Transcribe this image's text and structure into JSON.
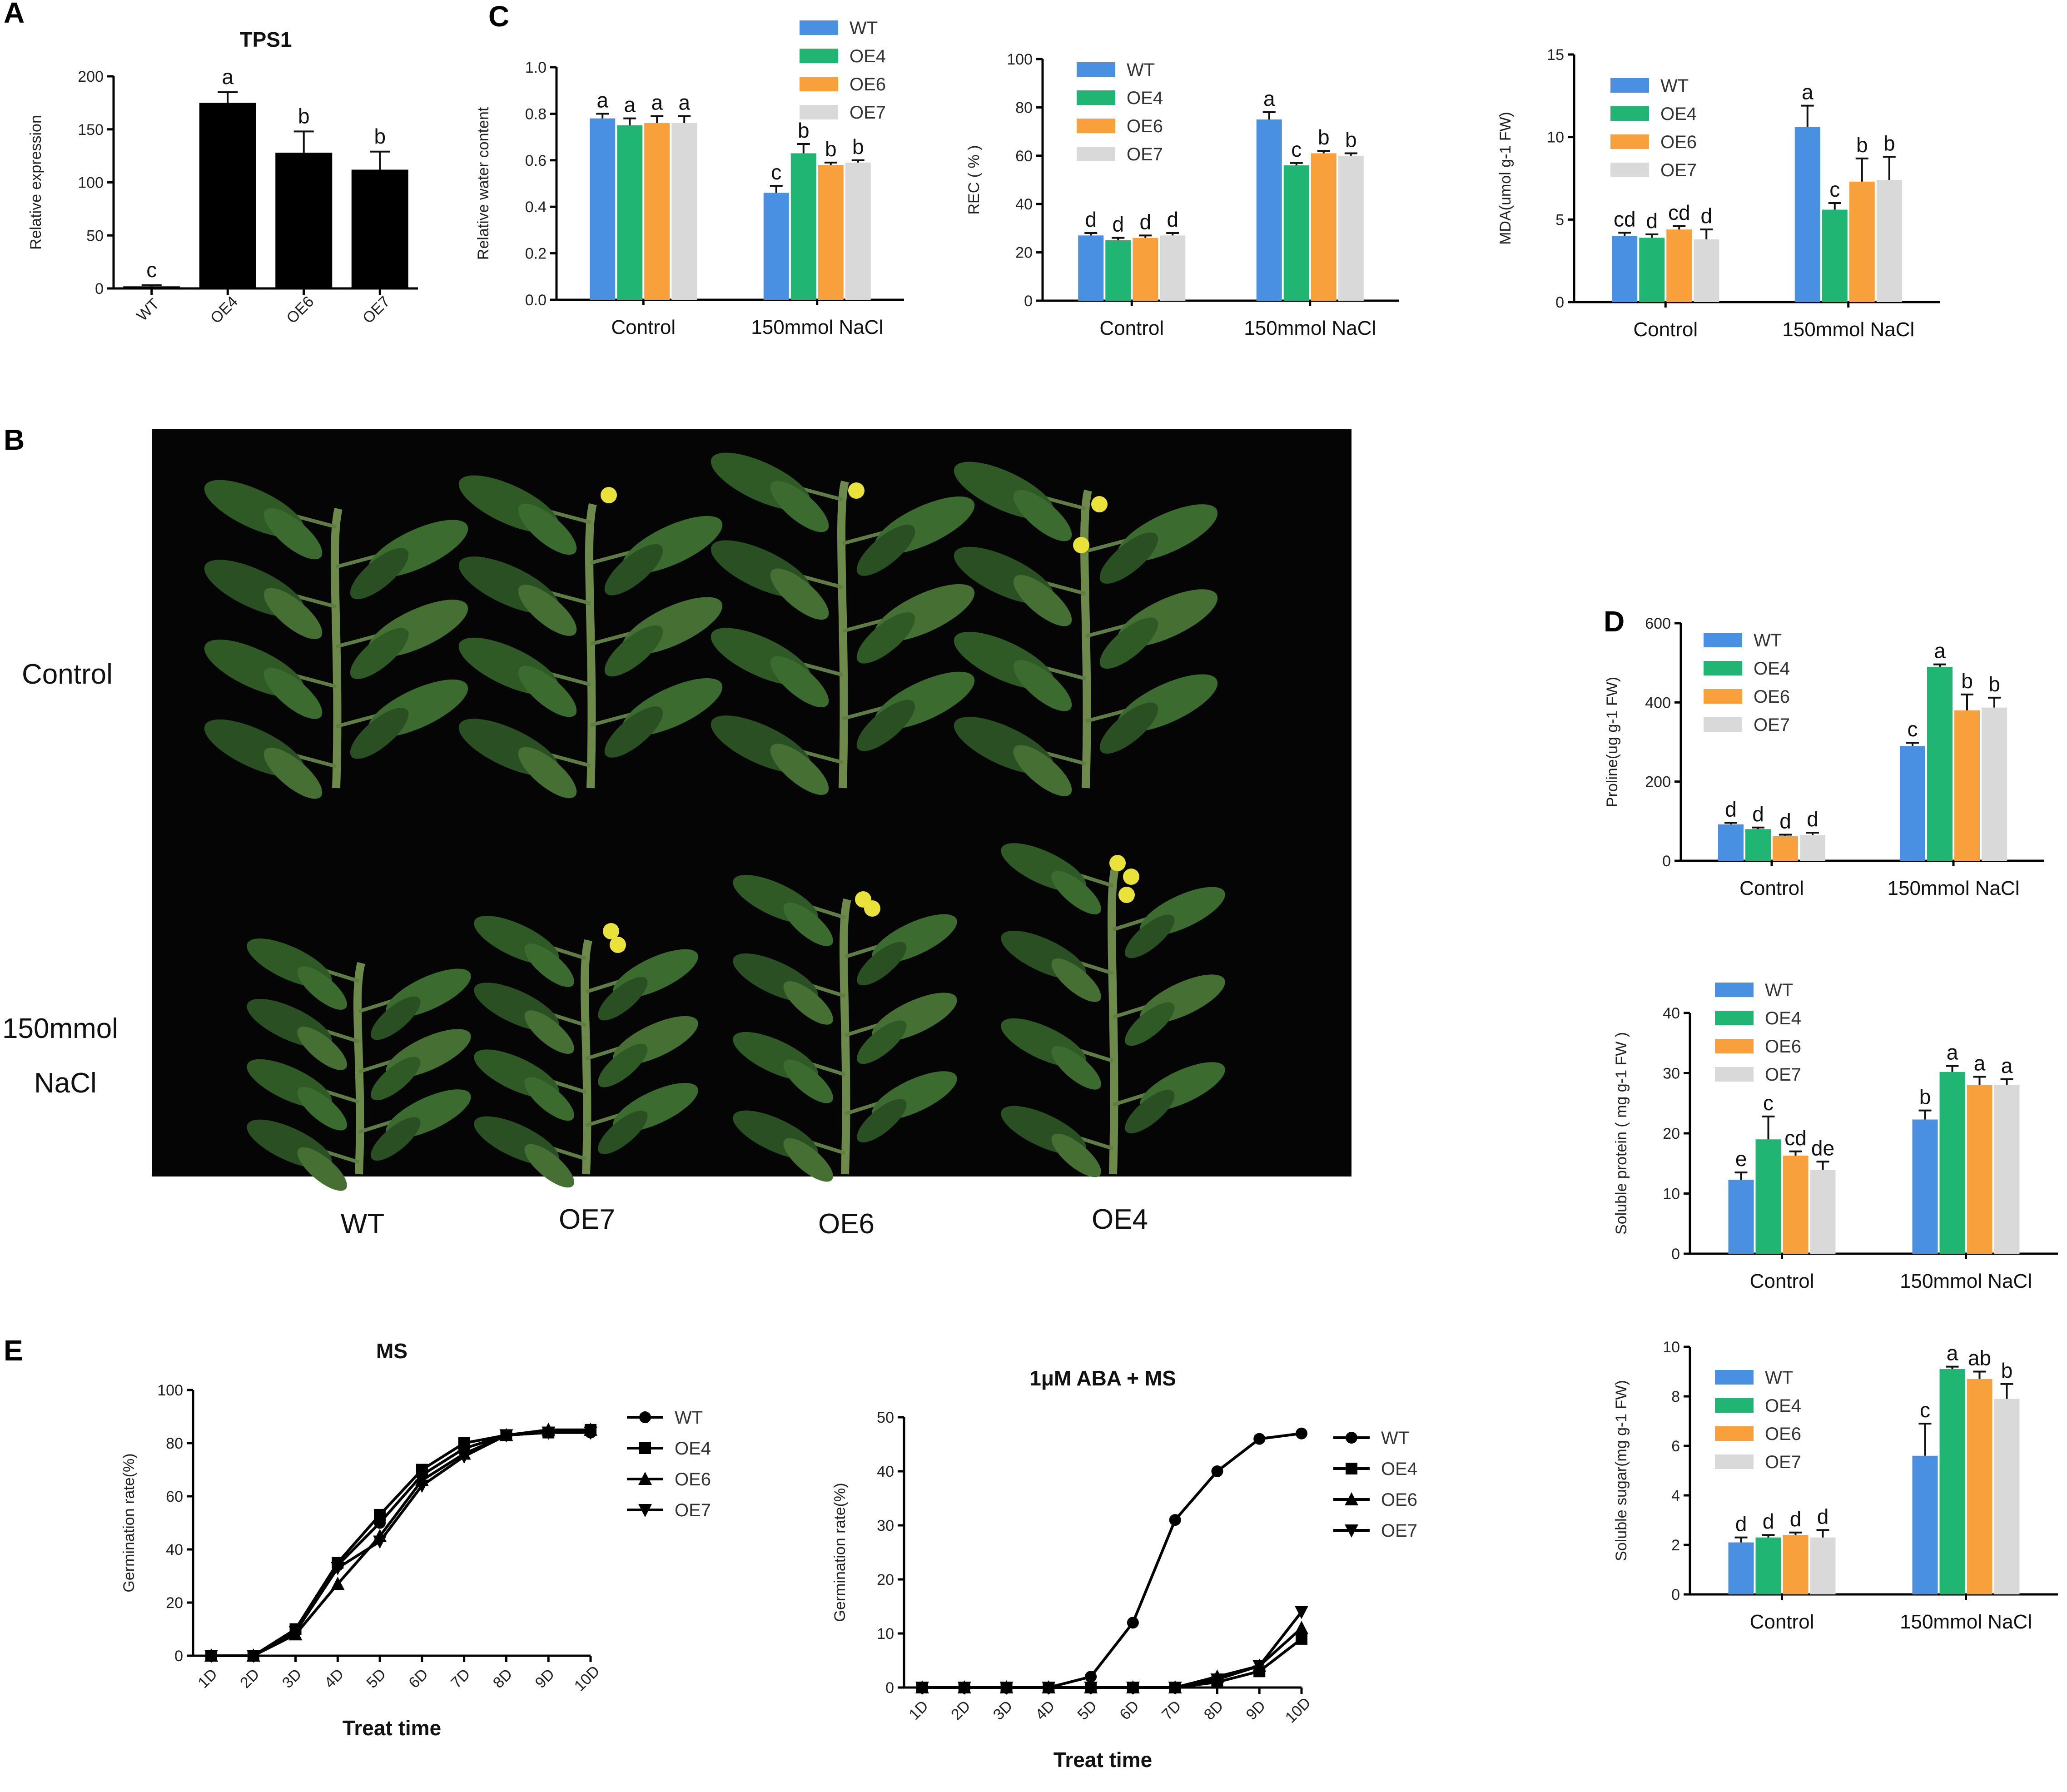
{
  "panel_letters": [
    "A",
    "B",
    "C",
    "D",
    "E"
  ],
  "colors": {
    "WT": "#4a90e2",
    "OE4": "#21b573",
    "OE6": "#f7a03c",
    "OE7": "#d9d9d9",
    "A_bars": "#000000"
  },
  "photo": {
    "row_labels": [
      "Control",
      "150mmol",
      "NaCl"
    ],
    "column_labels": [
      "WT",
      "OE7",
      "OE6",
      "OE4"
    ]
  },
  "chart_data": [
    {
      "id": "A",
      "type": "bar",
      "title": "TPS1",
      "ylabel": "Relative expression",
      "ylim": [
        0,
        200
      ],
      "yticks": [
        0,
        50,
        100,
        150,
        200
      ],
      "categories": [
        "WT",
        "OE4",
        "OE6",
        "OE7"
      ],
      "values": [
        2,
        175,
        128,
        112
      ],
      "errors": [
        1,
        10,
        20,
        17
      ],
      "letters": [
        "c",
        "a",
        "b",
        "b"
      ]
    },
    {
      "id": "C1",
      "type": "bar",
      "ylabel": "Relative water content",
      "ylim": [
        0.0,
        1.0
      ],
      "yticks": [
        "0.0",
        "0.2",
        "0.4",
        "0.6",
        "0.8",
        "1.0"
      ],
      "categories": [
        "Control",
        "150mmol NaCl"
      ],
      "series": [
        {
          "name": "WT",
          "values": [
            0.78,
            0.46
          ],
          "errors": [
            0.02,
            0.03
          ],
          "letters": [
            "a",
            "c"
          ]
        },
        {
          "name": "OE4",
          "values": [
            0.75,
            0.63
          ],
          "errors": [
            0.03,
            0.04
          ],
          "letters": [
            "a",
            "b"
          ]
        },
        {
          "name": "OE6",
          "values": [
            0.76,
            0.58
          ],
          "errors": [
            0.03,
            0.01
          ],
          "letters": [
            "a",
            "b"
          ]
        },
        {
          "name": "OE7",
          "values": [
            0.76,
            0.59
          ],
          "errors": [
            0.03,
            0.01
          ],
          "letters": [
            "a",
            "b"
          ]
        }
      ],
      "legend": "top-center"
    },
    {
      "id": "C2",
      "type": "bar",
      "ylabel": "REC ( % )",
      "ylim": [
        0,
        100
      ],
      "yticks": [
        "0",
        "20",
        "40",
        "60",
        "80",
        "100"
      ],
      "categories": [
        "Control",
        "150mmol NaCl"
      ],
      "series": [
        {
          "name": "WT",
          "values": [
            27,
            75
          ],
          "errors": [
            1,
            3
          ],
          "letters": [
            "d",
            "a"
          ]
        },
        {
          "name": "OE4",
          "values": [
            25,
            56
          ],
          "errors": [
            1,
            1
          ],
          "letters": [
            "d",
            "c"
          ]
        },
        {
          "name": "OE6",
          "values": [
            26,
            61
          ],
          "errors": [
            1,
            1
          ],
          "letters": [
            "d",
            "b"
          ]
        },
        {
          "name": "OE7",
          "values": [
            27,
            60
          ],
          "errors": [
            1,
            1
          ],
          "letters": [
            "d",
            "b"
          ]
        }
      ],
      "legend": "top-left"
    },
    {
      "id": "C3",
      "type": "bar",
      "ylabel": "MDA(umol g-1 FW)",
      "ylim": [
        0,
        15
      ],
      "yticks": [
        "0",
        "5",
        "10",
        "15"
      ],
      "categories": [
        "Control",
        "150mmol NaCl"
      ],
      "series": [
        {
          "name": "WT",
          "values": [
            4.0,
            10.6
          ],
          "errors": [
            0.2,
            1.3
          ],
          "letters": [
            "cd",
            "a"
          ]
        },
        {
          "name": "OE4",
          "values": [
            3.9,
            5.6
          ],
          "errors": [
            0.2,
            0.4
          ],
          "letters": [
            "d",
            "c"
          ]
        },
        {
          "name": "OE6",
          "values": [
            4.4,
            7.3
          ],
          "errors": [
            0.2,
            1.4
          ],
          "letters": [
            "cd",
            "b"
          ]
        },
        {
          "name": "OE7",
          "values": [
            3.8,
            7.4
          ],
          "errors": [
            0.6,
            1.4
          ],
          "letters": [
            "d",
            "b"
          ]
        }
      ],
      "legend": "top-left"
    },
    {
      "id": "D1",
      "type": "bar",
      "ylabel": "Proline(ug g-1 FW)",
      "ylim": [
        0,
        600
      ],
      "yticks": [
        "0",
        "200",
        "400",
        "600"
      ],
      "categories": [
        "Control",
        "150mmol NaCl"
      ],
      "series": [
        {
          "name": "WT",
          "values": [
            92,
            290
          ],
          "errors": [
            4,
            8
          ],
          "letters": [
            "d",
            "c"
          ]
        },
        {
          "name": "OE4",
          "values": [
            80,
            490
          ],
          "errors": [
            4,
            6
          ],
          "letters": [
            "d",
            "a"
          ]
        },
        {
          "name": "OE6",
          "values": [
            62,
            380
          ],
          "errors": [
            4,
            40
          ],
          "letters": [
            "d",
            "b"
          ]
        },
        {
          "name": "OE7",
          "values": [
            65,
            387
          ],
          "errors": [
            6,
            25
          ],
          "letters": [
            "d",
            "b"
          ]
        }
      ],
      "legend": "top-left"
    },
    {
      "id": "D2",
      "type": "bar",
      "ylabel": "Soluble protein ( mg g-1 FW )",
      "ylim": [
        0,
        40
      ],
      "yticks": [
        "0",
        "10",
        "20",
        "30",
        "40"
      ],
      "categories": [
        "Control",
        "150mmol NaCl"
      ],
      "series": [
        {
          "name": "WT",
          "values": [
            12.3,
            22.3
          ],
          "errors": [
            1.2,
            1.5
          ],
          "letters": [
            "e",
            "b"
          ]
        },
        {
          "name": "OE4",
          "values": [
            19.0,
            30.2
          ],
          "errors": [
            3.8,
            1.0
          ],
          "letters": [
            "c",
            "a"
          ]
        },
        {
          "name": "OE6",
          "values": [
            16.3,
            28.0
          ],
          "errors": [
            0.7,
            1.4
          ],
          "letters": [
            "cd",
            "a"
          ]
        },
        {
          "name": "OE7",
          "values": [
            13.9,
            28.0
          ],
          "errors": [
            1.4,
            1.0
          ],
          "letters": [
            "de",
            "a"
          ]
        }
      ],
      "legend": "top-left"
    },
    {
      "id": "D3",
      "type": "bar",
      "ylabel": "Soluble sugar(mg g-1 FW)",
      "ylim": [
        0,
        10
      ],
      "yticks": [
        "0",
        "2",
        "4",
        "6",
        "8",
        "10"
      ],
      "categories": [
        "Control",
        "150mmol NaCl"
      ],
      "series": [
        {
          "name": "WT",
          "values": [
            2.1,
            5.6
          ],
          "errors": [
            0.2,
            1.3
          ],
          "letters": [
            "d",
            "c"
          ]
        },
        {
          "name": "OE4",
          "values": [
            2.3,
            9.1
          ],
          "errors": [
            0.1,
            0.1
          ],
          "letters": [
            "d",
            "a"
          ]
        },
        {
          "name": "OE6",
          "values": [
            2.4,
            8.7
          ],
          "errors": [
            0.1,
            0.3
          ],
          "letters": [
            "d",
            "ab"
          ]
        },
        {
          "name": "OE7",
          "values": [
            2.3,
            7.9
          ],
          "errors": [
            0.3,
            0.6
          ],
          "letters": [
            "d",
            "b"
          ]
        }
      ],
      "legend": "top-left"
    },
    {
      "id": "E1",
      "type": "line",
      "title": "MS",
      "xlabel": "Treat time",
      "ylabel": "Germination rate(%)",
      "x": [
        "1D",
        "2D",
        "3D",
        "4D",
        "5D",
        "6D",
        "7D",
        "8D",
        "9D",
        "10D"
      ],
      "ylim": [
        0,
        100
      ],
      "yticks": [
        "0",
        "20",
        "40",
        "60",
        "80",
        "100"
      ],
      "series": [
        {
          "name": "WT",
          "marker": "circle",
          "values": [
            0,
            0,
            9,
            34,
            50,
            68,
            78,
            83,
            84,
            84
          ]
        },
        {
          "name": "OE4",
          "marker": "square",
          "values": [
            0,
            0,
            10,
            35,
            53,
            70,
            80,
            83,
            84,
            85
          ]
        },
        {
          "name": "OE6",
          "marker": "triangle",
          "values": [
            0,
            0,
            8,
            27,
            45,
            66,
            76,
            83,
            85,
            85
          ]
        },
        {
          "name": "OE7",
          "marker": "tri-down",
          "values": [
            0,
            0,
            9,
            33,
            43,
            64,
            75,
            83,
            84,
            84
          ]
        }
      ],
      "legend": "right"
    },
    {
      "id": "E2",
      "type": "line",
      "title": "1μM ABA + MS",
      "xlabel": "Treat time",
      "ylabel": "Germination rate(%)",
      "x": [
        "1D",
        "2D",
        "3D",
        "4D",
        "5D",
        "6D",
        "7D",
        "8D",
        "9D",
        "10D"
      ],
      "ylim": [
        0,
        50
      ],
      "yticks": [
        "0",
        "10",
        "20",
        "30",
        "40",
        "50"
      ],
      "series": [
        {
          "name": "WT",
          "marker": "circle",
          "values": [
            0,
            0,
            0,
            0,
            2,
            12,
            31,
            40,
            46,
            47
          ]
        },
        {
          "name": "OE4",
          "marker": "square",
          "values": [
            0,
            0,
            0,
            0,
            0,
            0,
            0,
            1,
            3,
            9
          ]
        },
        {
          "name": "OE6",
          "marker": "triangle",
          "values": [
            0,
            0,
            0,
            0,
            0,
            0,
            0,
            2,
            4,
            11
          ]
        },
        {
          "name": "OE7",
          "marker": "tri-down",
          "values": [
            0,
            0,
            0,
            0,
            0,
            0,
            0,
            1.5,
            4,
            14
          ]
        }
      ],
      "legend": "right"
    }
  ]
}
